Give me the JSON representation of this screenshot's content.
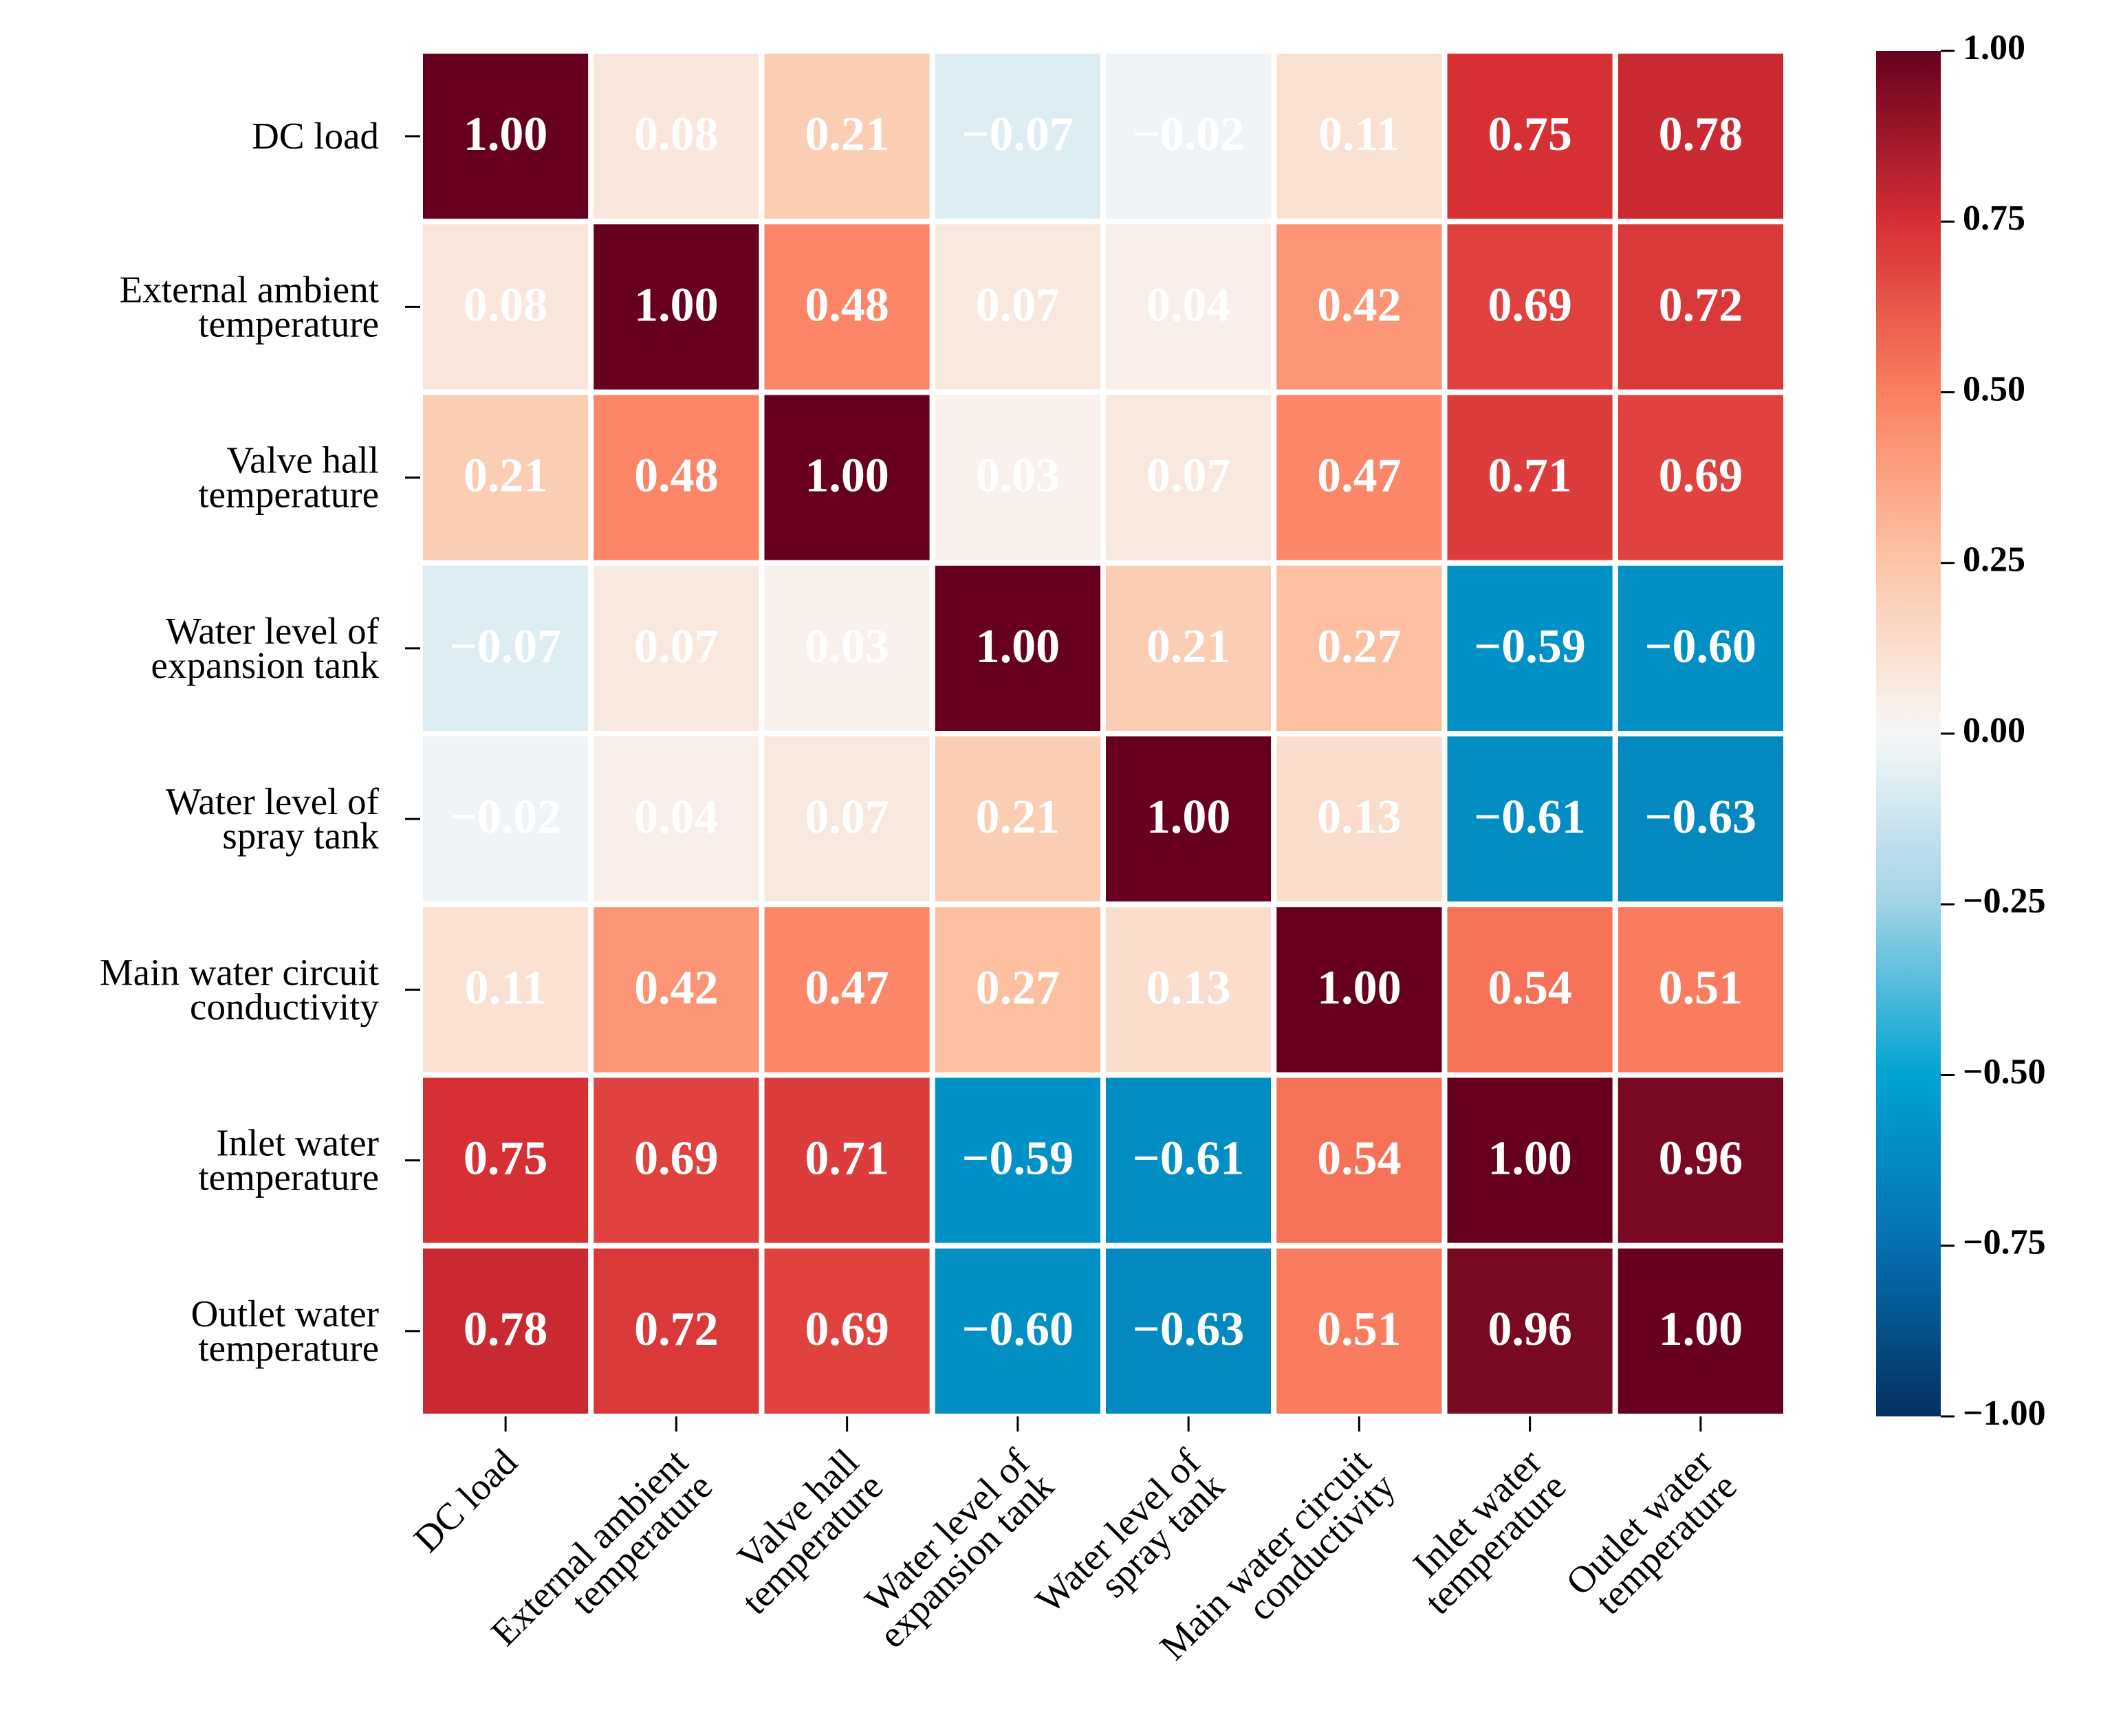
{
  "chart_data": {
    "type": "heatmap",
    "categories": [
      [
        "DC load"
      ],
      [
        "External ambient",
        "temperature"
      ],
      [
        "Valve hall",
        "temperature"
      ],
      [
        "Water level of",
        "expansion tank"
      ],
      [
        "Water level of",
        "spray tank"
      ],
      [
        "Main water circuit",
        "conductivity"
      ],
      [
        "Inlet water",
        "temperature"
      ],
      [
        "Outlet water",
        "temperature"
      ]
    ],
    "values": [
      [
        1.0,
        0.08,
        0.21,
        -0.07,
        -0.02,
        0.11,
        0.75,
        0.78
      ],
      [
        0.08,
        1.0,
        0.48,
        0.07,
        0.04,
        0.42,
        0.69,
        0.72
      ],
      [
        0.21,
        0.48,
        1.0,
        0.03,
        0.07,
        0.47,
        0.71,
        0.69
      ],
      [
        -0.07,
        0.07,
        0.03,
        1.0,
        0.21,
        0.27,
        -0.59,
        -0.6
      ],
      [
        -0.02,
        0.04,
        0.07,
        0.21,
        1.0,
        0.13,
        -0.61,
        -0.63
      ],
      [
        0.11,
        0.42,
        0.47,
        0.27,
        0.13,
        1.0,
        0.54,
        0.51
      ],
      [
        0.75,
        0.69,
        0.71,
        -0.59,
        -0.61,
        0.54,
        1.0,
        0.96
      ],
      [
        0.78,
        0.72,
        0.69,
        -0.6,
        -0.63,
        0.51,
        0.96,
        1.0
      ]
    ],
    "value_labels": [
      [
        "1.00",
        "0.08",
        "0.21",
        "−0.07",
        "−0.02",
        "0.11",
        "0.75",
        "0.78"
      ],
      [
        "0.08",
        "1.00",
        "0.48",
        "0.07",
        "0.04",
        "0.42",
        "0.69",
        "0.72"
      ],
      [
        "0.21",
        "0.48",
        "1.00",
        "0.03",
        "0.07",
        "0.47",
        "0.71",
        "0.69"
      ],
      [
        "−0.07",
        "0.07",
        "0.03",
        "1.00",
        "0.21",
        "0.27",
        "−0.59",
        "−0.60"
      ],
      [
        "−0.02",
        "0.04",
        "0.07",
        "0.21",
        "1.00",
        "0.13",
        "−0.61",
        "−0.63"
      ],
      [
        "0.11",
        "0.42",
        "0.47",
        "0.27",
        "0.13",
        "1.00",
        "0.54",
        "0.51"
      ],
      [
        "0.75",
        "0.69",
        "0.71",
        "−0.59",
        "−0.61",
        "0.54",
        "1.00",
        "0.96"
      ],
      [
        "0.78",
        "0.72",
        "0.69",
        "−0.60",
        "−0.63",
        "0.51",
        "0.96",
        "1.00"
      ]
    ],
    "colormap": [
      "#053061",
      "#0570b0",
      "#00a3d2",
      "#9fd3e6",
      "#f7f7f7",
      "#fcc5a6",
      "#fb7f60",
      "#d62f34",
      "#67001f"
    ],
    "clim": [
      -1,
      1
    ],
    "cticks": [
      {
        "value": -1,
        "label": "−1.00"
      },
      {
        "value": -0.75,
        "label": "−0.75"
      },
      {
        "value": -0.5,
        "label": "−0.50"
      },
      {
        "value": -0.25,
        "label": "−0.25"
      },
      {
        "value": 0,
        "label": "0.00"
      },
      {
        "value": 0.25,
        "label": "0.25"
      },
      {
        "value": 0.5,
        "label": "0.50"
      },
      {
        "value": 0.75,
        "label": "0.75"
      },
      {
        "value": 1,
        "label": "1.00"
      }
    ]
  }
}
